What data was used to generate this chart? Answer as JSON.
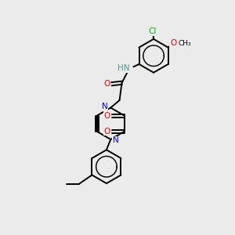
{
  "bg_color": "#ebebeb",
  "atom_colors": {
    "C": "#000000",
    "N": "#0000ee",
    "O": "#ee0000",
    "Cl": "#00bb00",
    "H": "#4d9999"
  },
  "bond_color": "#000000",
  "bond_width": 1.4,
  "fig_size": [
    3.0,
    3.0
  ],
  "dpi": 100
}
